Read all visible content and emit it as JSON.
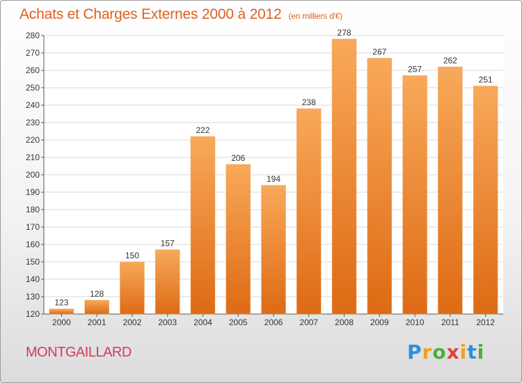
{
  "header": {
    "title": "Achats et Charges Externes 2000 à 2012",
    "unit": "(en milliers d'€)"
  },
  "footer": {
    "commune": "MONTGAILLARD",
    "brand": "Proxiti"
  },
  "colors": {
    "title": "#e0601e",
    "commune": "#d43a5a",
    "bar_top": "#f8a95a",
    "bar_bottom": "#de6a14"
  },
  "chart_data": {
    "type": "bar",
    "title": "Achats et Charges Externes 2000 à 2012",
    "subtitle": "(en milliers d'€)",
    "categories": [
      "2000",
      "2001",
      "2002",
      "2003",
      "2004",
      "2005",
      "2006",
      "2007",
      "2008",
      "2009",
      "2010",
      "2011",
      "2012"
    ],
    "values": [
      123,
      128,
      150,
      157,
      222,
      206,
      194,
      238,
      278,
      267,
      257,
      262,
      251
    ],
    "ylim": [
      120,
      280
    ],
    "yticks": [
      120,
      130,
      140,
      150,
      160,
      170,
      180,
      190,
      200,
      210,
      220,
      230,
      240,
      250,
      260,
      270,
      280
    ],
    "grid": true,
    "data_labels": true
  }
}
